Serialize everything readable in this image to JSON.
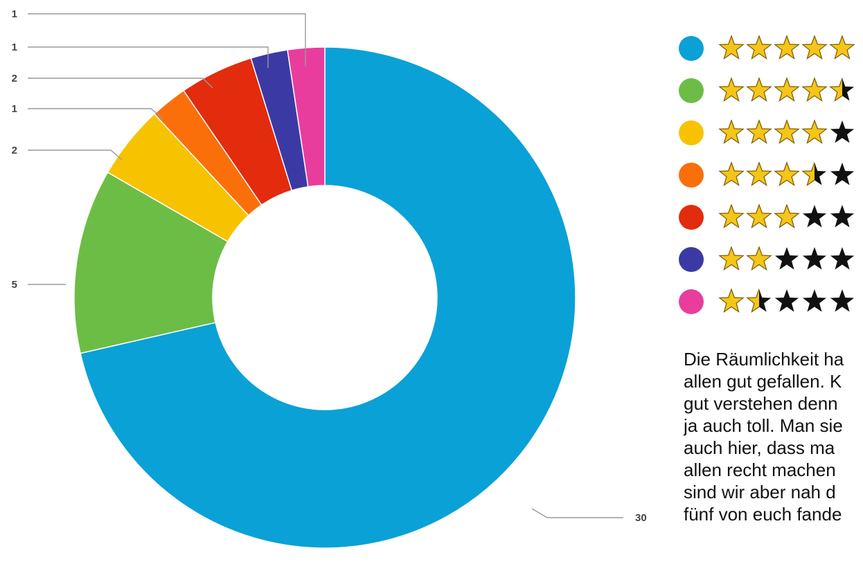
{
  "chart_data": {
    "type": "pie",
    "donut": true,
    "title": "",
    "categories": [
      "★★★★★",
      "★★★★½",
      "★★★★☆",
      "★★★½☆",
      "★★★☆☆",
      "★★☆☆☆",
      "★½☆☆☆"
    ],
    "star_ratings": [
      5,
      4.5,
      4,
      3.5,
      3,
      2,
      1.5
    ],
    "values": [
      30,
      5,
      2,
      1,
      2,
      1,
      1
    ],
    "colors": [
      "#0aa1d6",
      "#6cbd45",
      "#f7c300",
      "#fb6f0a",
      "#e32b0d",
      "#3b3aa5",
      "#e93d9e"
    ],
    "data_labels": [
      "30",
      "5",
      "2",
      "1",
      "2",
      "1",
      "1"
    ],
    "legend_position": "right"
  },
  "comment": {
    "lines": [
      "Die Räumlichkeit ha",
      "allen gut gefallen. K",
      "gut verstehen denn",
      "ja auch toll. Man sie",
      "auch hier, dass ma",
      "allen recht machen",
      "sind wir aber nah d",
      "fünf von euch fande"
    ]
  }
}
